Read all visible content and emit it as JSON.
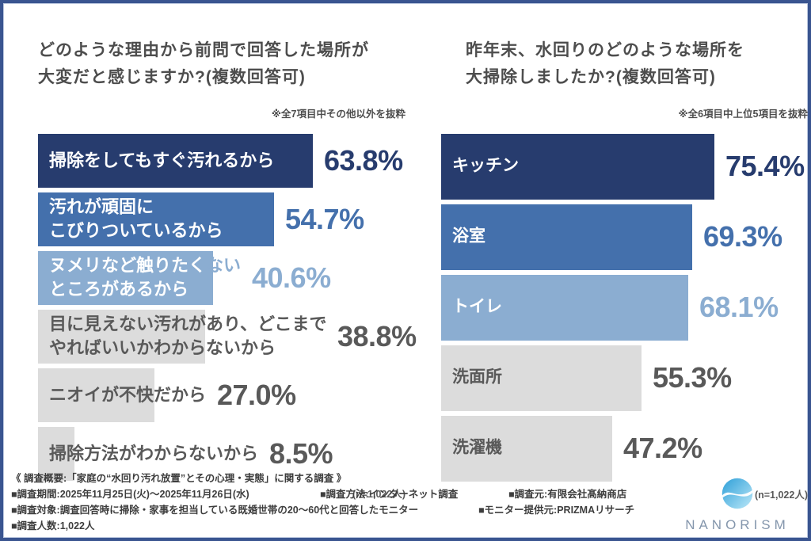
{
  "palette": {
    "navy": "#273C6E",
    "blue": "#4470AC",
    "light_blue": "#8BADD1",
    "gray_bar": "#DCDCDC",
    "gray_text": "#595959",
    "frame": "#3A5590"
  },
  "chart_data": [
    {
      "type": "bar",
      "orientation": "horizontal",
      "title": "どのような理由から前問で回答した場所が\n大変だと感じますか?(複数回答可)",
      "note": "※全7項目中その他以外を抜粋",
      "n_label": "(n=1,022人)",
      "categories": [
        "掃除をしてもすぐ汚れるから",
        "汚れが頑固にこびりついているから",
        "ヌメリなど触りたくないところがあるから",
        "目に見えない汚れがあり、どこまでやればいいかわからないから",
        "ニオイが不快だから",
        "掃除方法がわからないから"
      ],
      "values": [
        63.8,
        54.7,
        40.6,
        38.8,
        27.0,
        8.5
      ],
      "value_labels": [
        "63.8%",
        "54.7%",
        "40.6%",
        "38.8%",
        "27.0%",
        "8.5%"
      ],
      "xlim": [
        0,
        100
      ],
      "grid": false,
      "legend": "none",
      "rows": [
        {
          "lines": [
            [
              "掃除をしてもすぐ汚れるから"
            ]
          ],
          "color": "navy",
          "pct_color": "navy"
        },
        {
          "lines": [
            [
              "汚れが頑固に"
            ],
            [
              "こびりついているから"
            ]
          ],
          "color": "blue",
          "pct_color": "blue"
        },
        {
          "lines": [
            [
              "ヌメリなど触りたく",
              "ない"
            ],
            [
              "ところがあるから"
            ]
          ],
          "color": "light_blue",
          "pct_color": "light_blue"
        },
        {
          "lines": [
            [
              "目に見えない汚れがあり、どこまで"
            ],
            [
              "やればいいかわからないから"
            ]
          ],
          "color": "gray_bar",
          "pct_color": "gray_text"
        },
        {
          "lines": [
            [
              "ニオイが不快だから"
            ]
          ],
          "color": "gray_bar",
          "pct_color": "gray_text"
        },
        {
          "lines": [
            [
              "掃除方法がわからないから"
            ]
          ],
          "color": "gray_bar",
          "pct_color": "gray_text"
        }
      ]
    },
    {
      "type": "bar",
      "orientation": "horizontal",
      "title": "昨年末、水回りのどのような場所を\n大掃除しましたか?(複数回答可)",
      "note": "※全6項目中上位5項目を抜粋",
      "n_label": "(n=1,022人)",
      "categories": [
        "キッチン",
        "浴室",
        "トイレ",
        "洗面所",
        "洗濯機"
      ],
      "values": [
        75.4,
        69.3,
        68.1,
        55.3,
        47.2
      ],
      "value_labels": [
        "75.4%",
        "69.3%",
        "68.1%",
        "55.3%",
        "47.2%"
      ],
      "xlim": [
        0,
        100
      ],
      "grid": false,
      "legend": "none",
      "rows": [
        {
          "lines": [
            [
              "キッチン"
            ]
          ],
          "color": "navy",
          "pct_color": "navy"
        },
        {
          "lines": [
            [
              "浴室"
            ]
          ],
          "color": "blue",
          "pct_color": "blue"
        },
        {
          "lines": [
            [
              "トイレ"
            ]
          ],
          "color": "light_blue",
          "pct_color": "light_blue"
        },
        {
          "lines": [
            [
              "洗面所"
            ]
          ],
          "color": "gray_bar",
          "pct_color": "gray_text"
        },
        {
          "lines": [
            [
              "洗濯機"
            ]
          ],
          "color": "gray_bar",
          "pct_color": "gray_text"
        }
      ]
    }
  ],
  "footer": {
    "heading": "《 調査概要:「家庭の“水回り汚れ放置”とその心理・実態」に関する調査 》",
    "line2": [
      "■調査期間:2025年11月25日(火)〜2025年11月26日(水)",
      "■調査方法:インターネット調査",
      "■調査元:有限会社髙納商店"
    ],
    "line3": [
      "■調査対象:調査回答時に掃除・家事を担当している既婚世帯の20〜60代と回答したモニター",
      "■モニター提供元:PRIZMAリサーチ"
    ],
    "line4": [
      "■調査人数:1,022人"
    ]
  },
  "logo": {
    "brand": "NANORISM"
  }
}
